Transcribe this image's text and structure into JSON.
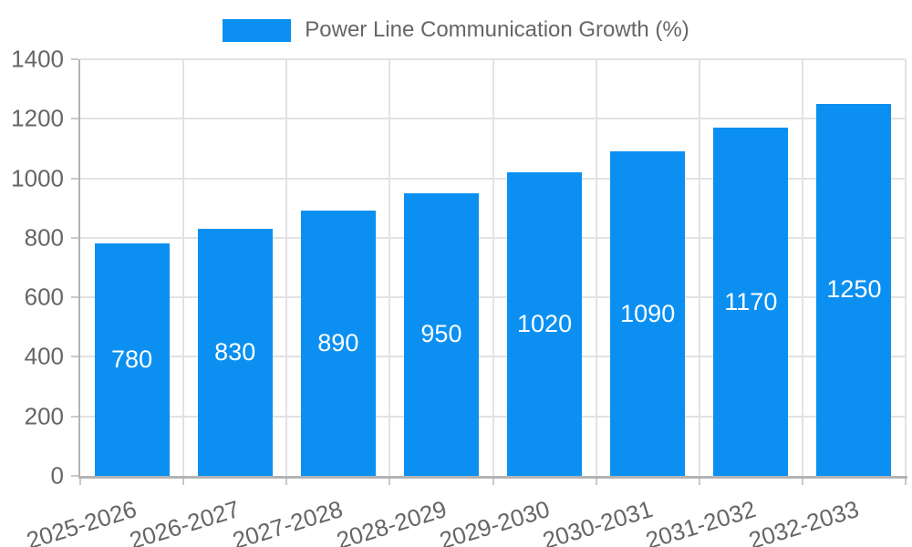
{
  "chart_data": {
    "type": "bar",
    "title": "",
    "legend_label": "Power Line Communication Growth (%)",
    "legend_position": "top",
    "categories": [
      "2025-2026",
      "2026-2027",
      "2027-2028",
      "2028-2029",
      "2029-2030",
      "2030-2031",
      "2031-2032",
      "2032-2033"
    ],
    "values": [
      780,
      830,
      890,
      950,
      1020,
      1090,
      1170,
      1250
    ],
    "xlabel": "",
    "ylabel": "",
    "ylim": [
      0,
      1400
    ],
    "ytick_step": 200,
    "ytick_labels": [
      "0",
      "200",
      "400",
      "600",
      "800",
      "1000",
      "1200",
      "1400"
    ],
    "grid": true,
    "bar_labels_shown": true,
    "colors": {
      "bar": "#0b90f2",
      "bar_label": "#ffffff",
      "axis_text": "#666666",
      "grid_line": "#e2e2e2",
      "axis_line": "#b3b3b3",
      "tick_mark": "#c9c9c9",
      "background": "#ffffff"
    }
  }
}
